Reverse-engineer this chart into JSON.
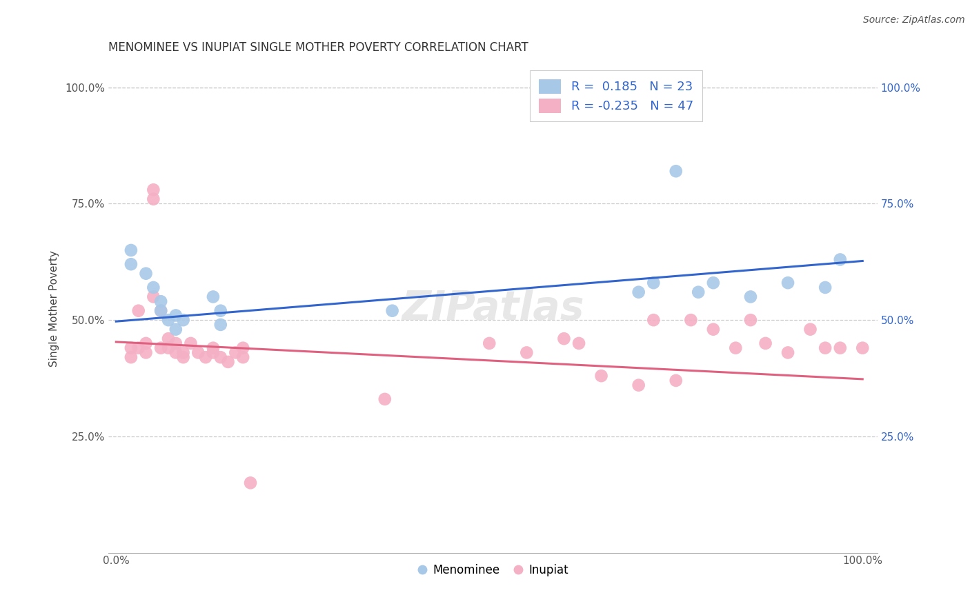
{
  "title": "MENOMINEE VS INUPIAT SINGLE MOTHER POVERTY CORRELATION CHART",
  "source": "Source: ZipAtlas.com",
  "ylabel": "Single Mother Poverty",
  "legend_bottom": [
    "Menominee",
    "Inupiat"
  ],
  "menominee_R": 0.185,
  "menominee_N": 23,
  "inupiat_R": -0.235,
  "inupiat_N": 47,
  "menominee_color": "#a8c8e8",
  "inupiat_color": "#f4b0c4",
  "menominee_line_color": "#3366cc",
  "inupiat_line_color": "#e06080",
  "background_color": "#ffffff",
  "grid_color": "#cccccc",
  "menominee_x": [
    0.02,
    0.02,
    0.04,
    0.05,
    0.06,
    0.06,
    0.07,
    0.08,
    0.08,
    0.09,
    0.13,
    0.14,
    0.14,
    0.37,
    0.7,
    0.72,
    0.75,
    0.78,
    0.8,
    0.85,
    0.9,
    0.95,
    0.97
  ],
  "menominee_y": [
    0.62,
    0.65,
    0.6,
    0.57,
    0.54,
    0.52,
    0.5,
    0.48,
    0.51,
    0.5,
    0.55,
    0.52,
    0.49,
    0.52,
    0.56,
    0.58,
    0.82,
    0.56,
    0.58,
    0.55,
    0.58,
    0.57,
    0.63
  ],
  "inupiat_x": [
    0.02,
    0.02,
    0.03,
    0.03,
    0.04,
    0.04,
    0.05,
    0.05,
    0.05,
    0.06,
    0.06,
    0.07,
    0.07,
    0.08,
    0.08,
    0.09,
    0.09,
    0.1,
    0.11,
    0.12,
    0.13,
    0.13,
    0.14,
    0.15,
    0.16,
    0.17,
    0.17,
    0.18,
    0.36,
    0.5,
    0.55,
    0.6,
    0.62,
    0.65,
    0.7,
    0.72,
    0.75,
    0.77,
    0.8,
    0.83,
    0.85,
    0.87,
    0.9,
    0.93,
    0.95,
    0.97,
    1.0
  ],
  "inupiat_y": [
    0.42,
    0.44,
    0.44,
    0.52,
    0.43,
    0.45,
    0.76,
    0.78,
    0.55,
    0.44,
    0.52,
    0.44,
    0.46,
    0.43,
    0.45,
    0.42,
    0.43,
    0.45,
    0.43,
    0.42,
    0.43,
    0.44,
    0.42,
    0.41,
    0.43,
    0.42,
    0.44,
    0.15,
    0.33,
    0.45,
    0.43,
    0.46,
    0.45,
    0.38,
    0.36,
    0.5,
    0.37,
    0.5,
    0.48,
    0.44,
    0.5,
    0.45,
    0.43,
    0.48,
    0.44,
    0.44,
    0.44
  ],
  "ylim": [
    0.0,
    1.05
  ],
  "xlim": [
    -0.01,
    1.02
  ],
  "yticks": [
    0.25,
    0.5,
    0.75,
    1.0
  ],
  "ytick_labels": [
    "25.0%",
    "50.0%",
    "75.0%",
    "100.0%"
  ],
  "right_ytick_labels": [
    "25.0%",
    "50.0%",
    "75.0%",
    "100.0%"
  ],
  "menominee_intercept": 0.497,
  "menominee_slope": 0.13,
  "inupiat_intercept": 0.453,
  "inupiat_slope": -0.08
}
